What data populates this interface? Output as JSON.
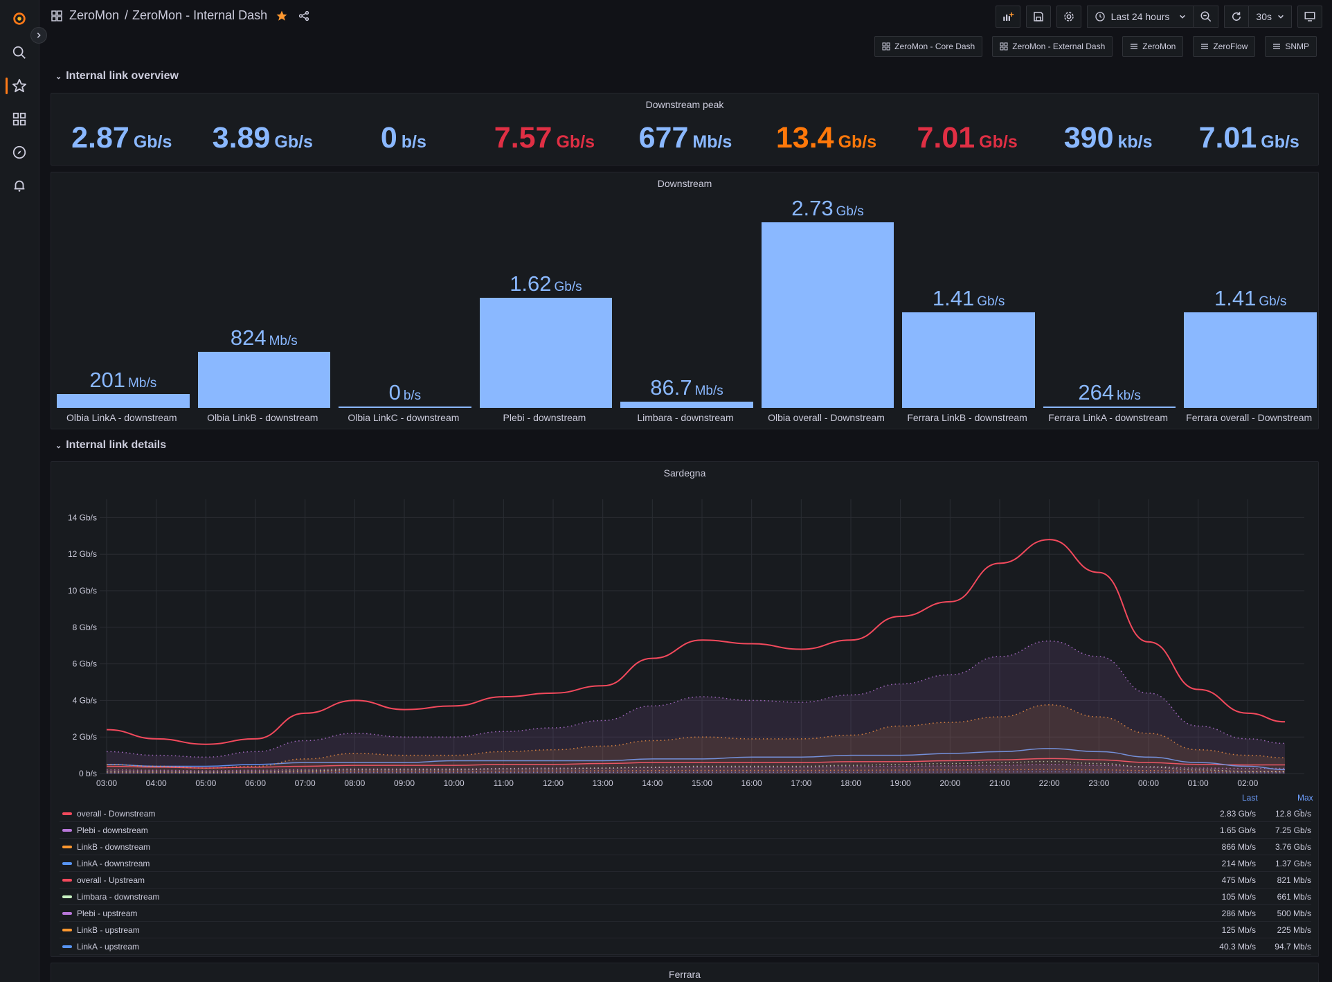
{
  "breadcrumb": {
    "folder": "ZeroMon",
    "separator": "/",
    "dashboard": "ZeroMon - Internal Dash"
  },
  "toolbar": {
    "time_range": "Last 24 hours",
    "refresh_interval": "30s"
  },
  "links": [
    {
      "label": "ZeroMon - Core Dash",
      "icon": "apps-icon"
    },
    {
      "label": "ZeroMon - External Dash",
      "icon": "apps-icon"
    },
    {
      "label": "ZeroMon",
      "icon": "bars-icon"
    },
    {
      "label": "ZeroFlow",
      "icon": "bars-icon"
    },
    {
      "label": "SNMP",
      "icon": "bars-icon"
    }
  ],
  "rows": {
    "overview": "Internal link overview",
    "details": "Internal link details"
  },
  "colors": {
    "blue": "#8ab8ff",
    "red": "#e02f44",
    "orange": "#ff780a"
  },
  "peak_panel": {
    "title": "Downstream peak",
    "stats": [
      {
        "value": "2.87",
        "unit": "Gb/s",
        "color": "#8ab8ff"
      },
      {
        "value": "3.89",
        "unit": "Gb/s",
        "color": "#8ab8ff"
      },
      {
        "value": "0",
        "unit": "b/s",
        "color": "#8ab8ff"
      },
      {
        "value": "7.57",
        "unit": "Gb/s",
        "color": "#e02f44"
      },
      {
        "value": "677",
        "unit": "Mb/s",
        "color": "#8ab8ff"
      },
      {
        "value": "13.4",
        "unit": "Gb/s",
        "color": "#ff780a"
      },
      {
        "value": "7.01",
        "unit": "Gb/s",
        "color": "#e02f44"
      },
      {
        "value": "390",
        "unit": "kb/s",
        "color": "#8ab8ff"
      },
      {
        "value": "7.01",
        "unit": "Gb/s",
        "color": "#8ab8ff"
      }
    ]
  },
  "downstream_panel": {
    "title": "Downstream",
    "bars": [
      {
        "value": "201",
        "unit": "Mb/s",
        "level": 0.074,
        "label": "Olbia LinkA - downstream"
      },
      {
        "value": "824",
        "unit": "Mb/s",
        "level": 0.302,
        "label": "Olbia LinkB - downstream"
      },
      {
        "value": "0",
        "unit": "b/s",
        "level": 0.0,
        "label": "Olbia LinkC - downstream"
      },
      {
        "value": "1.62",
        "unit": "Gb/s",
        "level": 0.593,
        "label": "Plebi - downstream"
      },
      {
        "value": "86.7",
        "unit": "Mb/s",
        "level": 0.032,
        "label": "Limbara - downstream"
      },
      {
        "value": "2.73",
        "unit": "Gb/s",
        "level": 1.0,
        "label": "Olbia overall - Downstream"
      },
      {
        "value": "1.41",
        "unit": "Gb/s",
        "level": 0.516,
        "label": "Ferrara LinkB - downstream"
      },
      {
        "value": "264",
        "unit": "kb/s",
        "level": 0.0001,
        "label": "Ferrara LinkA - downstream"
      },
      {
        "value": "1.41",
        "unit": "Gb/s",
        "level": 0.516,
        "label": "Ferrara overall - Downstream"
      }
    ]
  },
  "chart_data": {
    "type": "line",
    "title": "Sardegna",
    "y_ticks": [
      "0 b/s",
      "2 Gb/s",
      "4 Gb/s",
      "6 Gb/s",
      "8 Gb/s",
      "10 Gb/s",
      "12 Gb/s",
      "14 Gb/s"
    ],
    "ylim": [
      0,
      15
    ],
    "x_ticks": [
      "03:00",
      "04:00",
      "05:00",
      "06:00",
      "07:00",
      "08:00",
      "09:00",
      "10:00",
      "11:00",
      "12:00",
      "13:00",
      "14:00",
      "15:00",
      "16:00",
      "17:00",
      "18:00",
      "19:00",
      "20:00",
      "21:00",
      "22:00",
      "23:00",
      "00:00",
      "01:00",
      "02:00"
    ],
    "x": [
      "03:00",
      "04:00",
      "05:00",
      "06:00",
      "07:00",
      "08:00",
      "09:00",
      "10:00",
      "11:00",
      "12:00",
      "13:00",
      "14:00",
      "15:00",
      "16:00",
      "17:00",
      "18:00",
      "19:00",
      "20:00",
      "21:00",
      "22:00",
      "23:00",
      "00:00",
      "01:00",
      "02:00",
      "02:45"
    ],
    "grid": true,
    "series": [
      {
        "name": "overall - Downstream",
        "color": "#f2495c",
        "values": [
          2.4,
          1.9,
          1.6,
          1.9,
          3.3,
          4.0,
          3.5,
          3.7,
          4.2,
          4.4,
          4.8,
          6.3,
          7.3,
          7.1,
          6.8,
          7.3,
          8.6,
          9.4,
          11.5,
          12.8,
          11.0,
          7.2,
          4.6,
          3.3,
          2.83
        ]
      },
      {
        "name": "Plebi - downstream",
        "color": "#b877d9",
        "fill": true,
        "values": [
          1.2,
          1.0,
          0.9,
          1.2,
          1.8,
          2.2,
          2.0,
          2.0,
          2.3,
          2.5,
          2.9,
          3.7,
          4.2,
          4.0,
          3.9,
          4.3,
          4.9,
          5.4,
          6.4,
          7.25,
          6.4,
          4.4,
          2.6,
          1.9,
          1.65
        ]
      },
      {
        "name": "LinkB - downstream",
        "color": "#ff9830",
        "fill": true,
        "values": [
          0.5,
          0.4,
          0.3,
          0.4,
          0.8,
          1.1,
          1.0,
          1.0,
          1.2,
          1.3,
          1.5,
          1.8,
          2.0,
          1.9,
          1.9,
          2.1,
          2.6,
          2.8,
          3.1,
          3.76,
          3.1,
          2.2,
          1.3,
          1.0,
          0.866
        ]
      },
      {
        "name": "LinkA - downstream",
        "color": "#5794f2",
        "values": [
          0.5,
          0.4,
          0.4,
          0.5,
          0.6,
          0.6,
          0.6,
          0.7,
          0.7,
          0.7,
          0.7,
          0.8,
          0.8,
          0.9,
          0.9,
          1.0,
          1.0,
          1.1,
          1.2,
          1.37,
          1.2,
          0.9,
          0.6,
          0.4,
          0.214
        ]
      },
      {
        "name": "overall - Upstream",
        "color": "#f2495c",
        "values": [
          0.4,
          0.35,
          0.3,
          0.35,
          0.4,
          0.45,
          0.45,
          0.45,
          0.5,
          0.5,
          0.55,
          0.6,
          0.6,
          0.6,
          0.6,
          0.65,
          0.65,
          0.7,
          0.75,
          0.82,
          0.75,
          0.6,
          0.5,
          0.47,
          0.475
        ]
      },
      {
        "name": "Limbara - downstream",
        "color": "#c8f2c2",
        "values": [
          0.1,
          0.1,
          0.08,
          0.1,
          0.15,
          0.2,
          0.2,
          0.2,
          0.25,
          0.25,
          0.3,
          0.35,
          0.4,
          0.4,
          0.4,
          0.45,
          0.5,
          0.55,
          0.6,
          0.66,
          0.55,
          0.35,
          0.2,
          0.12,
          0.105
        ]
      },
      {
        "name": "Plebi - upstream",
        "color": "#b877d9",
        "fill": true,
        "values": [
          0.2,
          0.18,
          0.15,
          0.18,
          0.22,
          0.25,
          0.25,
          0.25,
          0.28,
          0.3,
          0.3,
          0.33,
          0.35,
          0.35,
          0.35,
          0.38,
          0.4,
          0.42,
          0.45,
          0.5,
          0.45,
          0.38,
          0.3,
          0.28,
          0.286
        ]
      },
      {
        "name": "LinkB - upstream",
        "color": "#ff9830",
        "values": [
          0.08,
          0.07,
          0.06,
          0.07,
          0.1,
          0.12,
          0.12,
          0.12,
          0.13,
          0.14,
          0.15,
          0.16,
          0.17,
          0.17,
          0.17,
          0.18,
          0.19,
          0.2,
          0.21,
          0.225,
          0.2,
          0.16,
          0.13,
          0.12,
          0.125
        ]
      },
      {
        "name": "LinkA - upstream",
        "color": "#5794f2",
        "values": [
          0.03,
          0.03,
          0.02,
          0.03,
          0.04,
          0.05,
          0.05,
          0.05,
          0.05,
          0.06,
          0.06,
          0.06,
          0.07,
          0.07,
          0.07,
          0.07,
          0.08,
          0.08,
          0.09,
          0.0947,
          0.08,
          0.06,
          0.05,
          0.04,
          0.0403
        ]
      }
    ]
  },
  "legend": {
    "col_last": "Last",
    "col_max": "Max",
    "rows": [
      {
        "name": "overall - Downstream",
        "color": "#f2495c",
        "last": "2.83 Gb/s",
        "max": "12.8 Gb/s"
      },
      {
        "name": "Plebi - downstream",
        "color": "#b877d9",
        "last": "1.65 Gb/s",
        "max": "7.25 Gb/s"
      },
      {
        "name": "LinkB - downstream",
        "color": "#ff9830",
        "last": "866 Mb/s",
        "max": "3.76 Gb/s"
      },
      {
        "name": "LinkA - downstream",
        "color": "#5794f2",
        "last": "214 Mb/s",
        "max": "1.37 Gb/s"
      },
      {
        "name": "overall - Upstream",
        "color": "#f2495c",
        "last": "475 Mb/s",
        "max": "821 Mb/s"
      },
      {
        "name": "Limbara - downstream",
        "color": "#c8f2c2",
        "last": "105 Mb/s",
        "max": "661 Mb/s"
      },
      {
        "name": "Plebi - upstream",
        "color": "#b877d9",
        "last": "286 Mb/s",
        "max": "500 Mb/s"
      },
      {
        "name": "LinkB - upstream",
        "color": "#ff9830",
        "last": "125 Mb/s",
        "max": "225 Mb/s"
      },
      {
        "name": "LinkA - upstream",
        "color": "#5794f2",
        "last": "40.3 Mb/s",
        "max": "94.7 Mb/s"
      }
    ]
  },
  "next_panel": {
    "title": "Ferrara"
  }
}
